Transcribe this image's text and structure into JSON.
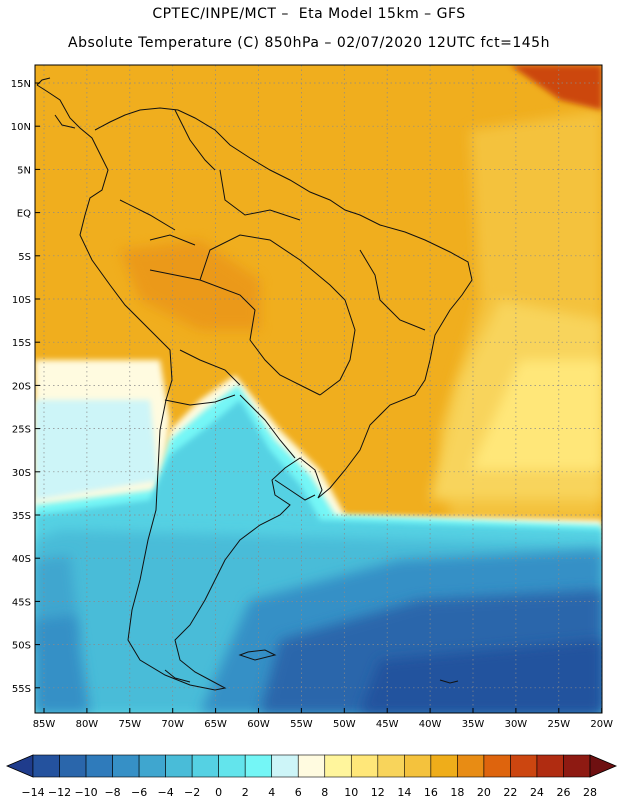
{
  "header": {
    "line1": "CPTEC/INPE/MCT –  Eta Model 15km – GFS",
    "line2": "Absolute Temperature (C) 850hPa – 02/07/2020 12UTC fct=145h"
  },
  "map": {
    "lat_labels": [
      "15N",
      "10N",
      "5N",
      "EQ",
      "5S",
      "10S",
      "15S",
      "20S",
      "25S",
      "30S",
      "35S",
      "40S",
      "45S",
      "50S",
      "55S"
    ],
    "lon_labels": [
      "85W",
      "80W",
      "75W",
      "70W",
      "65W",
      "60W",
      "55W",
      "50W",
      "45W",
      "40W",
      "35W",
      "30W",
      "25W",
      "20W"
    ],
    "grid": true
  },
  "colorbar": {
    "labels": [
      "-14",
      "-12",
      "-10",
      "-8",
      "-6",
      "-4",
      "-2",
      "0",
      "2",
      "4",
      "6",
      "8",
      "10",
      "12",
      "14",
      "16",
      "18",
      "20",
      "22",
      "24",
      "26",
      "28"
    ],
    "colors": [
      "#1f3c8c",
      "#24529e",
      "#2a66ab",
      "#2f7bbb",
      "#3690c6",
      "#3fa6cf",
      "#49bcd8",
      "#55d1e3",
      "#63e4ec",
      "#74f6f6",
      "#cdf5f8",
      "#fffbe0",
      "#fff59c",
      "#ffe779",
      "#f8d45b",
      "#f4c23d",
      "#efad1a",
      "#e88c14",
      "#de640d",
      "#cc4610",
      "#b02c11",
      "#8e1a12",
      "#6e1011"
    ]
  }
}
